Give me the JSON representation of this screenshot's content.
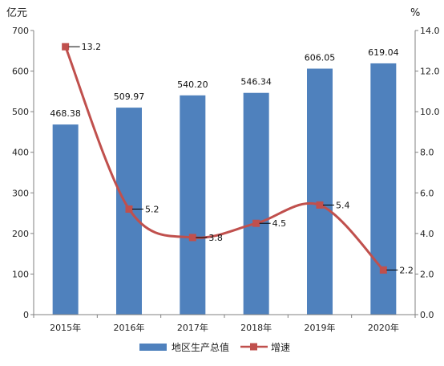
{
  "chart_data": {
    "type": "bar",
    "categories": [
      "2015年",
      "2016年",
      "2017年",
      "2018年",
      "2019年",
      "2020年"
    ],
    "series": [
      {
        "name": "地区生产总值",
        "type": "bar",
        "axis": "left",
        "values": [
          468.38,
          509.97,
          540.2,
          546.34,
          606.05,
          619.04
        ],
        "labels": [
          "468.38",
          "509.97",
          "540.20",
          "546.34",
          "606.05",
          "619.04"
        ]
      },
      {
        "name": "增速",
        "type": "line",
        "axis": "right",
        "values": [
          13.2,
          5.2,
          3.8,
          4.5,
          5.4,
          2.2
        ],
        "labels": [
          "13.2",
          "5.2",
          "3.8",
          "4.5",
          "5.4",
          "2.2"
        ]
      }
    ],
    "y_left": {
      "unit": "亿元",
      "min": 0,
      "max": 700,
      "step": 100
    },
    "y_right": {
      "unit": "%",
      "min": 0,
      "max": 14,
      "step": 2,
      "decimals": 1
    },
    "legend_position": "bottom",
    "grid": false,
    "colors": {
      "bar": "#4f81bd",
      "line": "#c0504d",
      "axis": "#808080",
      "leader": "#000000"
    }
  }
}
